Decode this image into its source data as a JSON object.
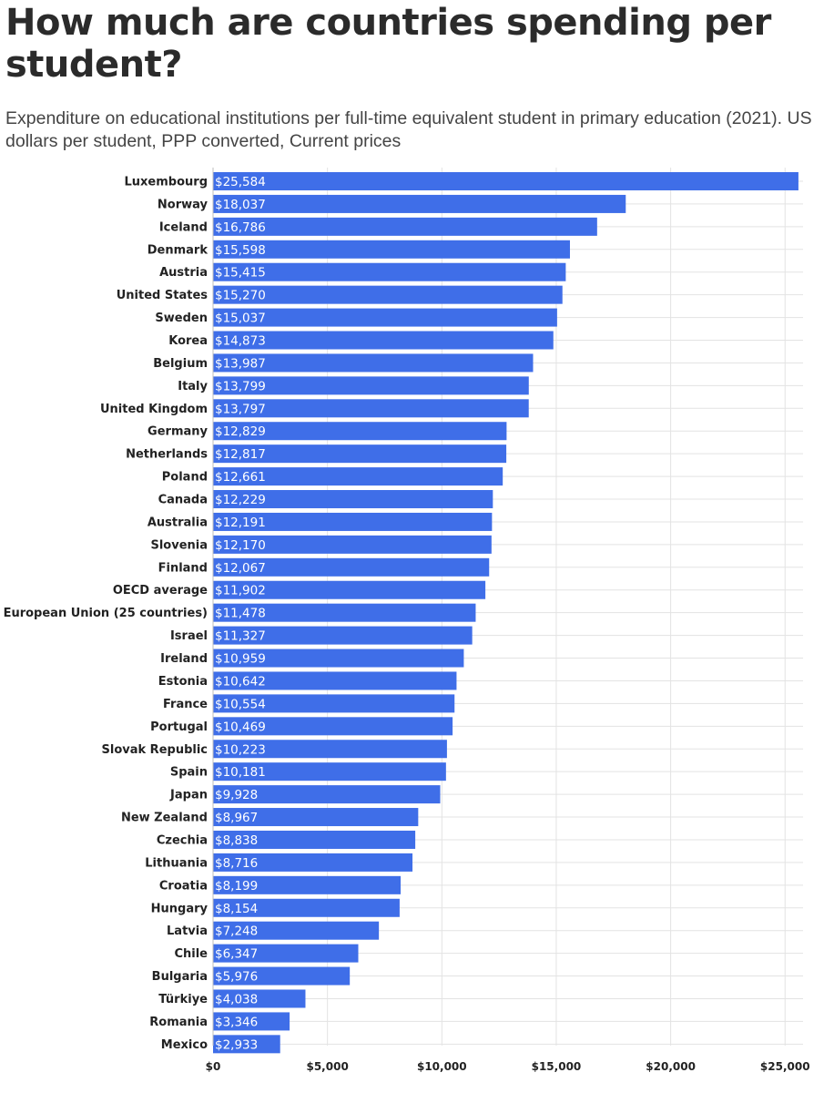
{
  "chart_data": {
    "type": "bar",
    "orientation": "horizontal",
    "title": "How much are countries spending per student?",
    "subtitle": "Expenditure on educational institutions per full-time equivalent student in primary education (2021). US dollars per student, PPP converted, Current prices",
    "bar_color": "#3f6ee8",
    "xlim": [
      0,
      26000
    ],
    "xticks": [
      0,
      5000,
      10000,
      15000,
      20000,
      25000
    ],
    "xtick_labels": [
      "$0",
      "$5,000",
      "$10,000",
      "$15,000",
      "$20,000",
      "$25,000"
    ],
    "grid": true,
    "categories": [
      "Luxembourg",
      "Norway",
      "Iceland",
      "Denmark",
      "Austria",
      "United States",
      "Sweden",
      "Korea",
      "Belgium",
      "Italy",
      "United Kingdom",
      "Germany",
      "Netherlands",
      "Poland",
      "Canada",
      "Australia",
      "Slovenia",
      "Finland",
      "OECD average",
      "European Union (25 countries)",
      "Israel",
      "Ireland",
      "Estonia",
      "France",
      "Portugal",
      "Slovak Republic",
      "Spain",
      "Japan",
      "New Zealand",
      "Czechia",
      "Lithuania",
      "Croatia",
      "Hungary",
      "Latvia",
      "Chile",
      "Bulgaria",
      "Türkiye",
      "Romania",
      "Mexico"
    ],
    "values": [
      25584,
      18037,
      16786,
      15598,
      15415,
      15270,
      15037,
      14873,
      13987,
      13799,
      13797,
      12829,
      12817,
      12661,
      12229,
      12191,
      12170,
      12067,
      11902,
      11478,
      11327,
      10959,
      10642,
      10554,
      10469,
      10223,
      10181,
      9928,
      8967,
      8838,
      8716,
      8199,
      8154,
      7248,
      6347,
      5976,
      4038,
      3346,
      2933
    ],
    "value_labels": [
      "$25,584",
      "$18,037",
      "$16,786",
      "$15,598",
      "$15,415",
      "$15,270",
      "$15,037",
      "$14,873",
      "$13,987",
      "$13,799",
      "$13,797",
      "$12,829",
      "$12,817",
      "$12,661",
      "$12,229",
      "$12,191",
      "$12,170",
      "$12,067",
      "$11,902",
      "$11,478",
      "$11,327",
      "$10,959",
      "$10,642",
      "$10,554",
      "$10,469",
      "$10,223",
      "$10,181",
      "$9,928",
      "$8,967",
      "$8,838",
      "$8,716",
      "$8,199",
      "$8,154",
      "$7,248",
      "$6,347",
      "$5,976",
      "$4,038",
      "$3,346",
      "$2,933"
    ]
  }
}
